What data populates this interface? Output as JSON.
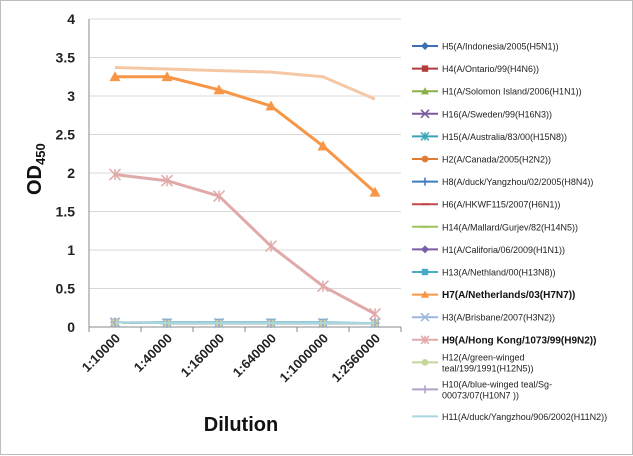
{
  "chart_data": {
    "type": "line",
    "title": "",
    "xlabel": "Dilution",
    "ylabel_main": "OD",
    "ylabel_sub": "450",
    "ylim": [
      0,
      4
    ],
    "yticks": [
      "0",
      "0.5",
      "1",
      "1.5",
      "2",
      "2.5",
      "3",
      "3.5",
      "4"
    ],
    "ytick_values": [
      0,
      0.5,
      1,
      1.5,
      2,
      2.5,
      3,
      3.5,
      4
    ],
    "categories": [
      "1:10000",
      "1:40000",
      "1:160000",
      "1:640000",
      "1:1000000",
      "1:2560000"
    ],
    "grid": "horizontal",
    "legend_position": "right",
    "series": [
      {
        "name": "H5(A/Indonesia/2005(H5N1))",
        "color": "#3d6fb5",
        "marker": "diamond",
        "values": [
          0.06,
          0.05,
          0.05,
          0.05,
          0.05,
          0.05
        ]
      },
      {
        "name": "H4(A/Ontario/99(H4N6))",
        "color": "#b23b3b",
        "marker": "square",
        "values": [
          0.06,
          0.05,
          0.05,
          0.05,
          0.05,
          0.05
        ]
      },
      {
        "name": "H1(A/Solomon Island/2006(H1N1))",
        "color": "#8ab04a",
        "marker": "triangle",
        "values": [
          0.06,
          0.05,
          0.05,
          0.05,
          0.05,
          0.05
        ]
      },
      {
        "name": "H16(A/Sweden/99(H16N3))",
        "color": "#7a5a9e",
        "marker": "x",
        "values": [
          0.06,
          0.05,
          0.05,
          0.05,
          0.05,
          0.05
        ]
      },
      {
        "name": "H15(A/Australia/83/00(H15N8))",
        "color": "#3aa3b8",
        "marker": "star",
        "values": [
          0.06,
          0.05,
          0.05,
          0.05,
          0.05,
          0.05
        ]
      },
      {
        "name": "H2(A/Canada/2005(H2N2))",
        "color": "#e07b30",
        "marker": "circle",
        "values": [
          0.06,
          0.05,
          0.05,
          0.05,
          0.05,
          0.05
        ]
      },
      {
        "name": "H8(A/duck/Yangzhou/02/2005(H8N4))",
        "color": "#3d7cc0",
        "marker": "plus",
        "values": [
          0.06,
          0.05,
          0.05,
          0.05,
          0.05,
          0.05
        ]
      },
      {
        "name": "H6(A/HKWF115/2007(H6N1))",
        "color": "#c24a4a",
        "marker": "dash",
        "values": [
          0.06,
          0.05,
          0.05,
          0.05,
          0.05,
          0.05
        ]
      },
      {
        "name": "H14(A/Mallard/Gurjev/82(H14N5))",
        "color": "#9bc45a",
        "marker": "dash",
        "values": [
          0.06,
          0.05,
          0.05,
          0.05,
          0.05,
          0.05
        ]
      },
      {
        "name": "H1(A/Califoria/06/2009(H1N1))",
        "color": "#7b5ca8",
        "marker": "diamond",
        "values": [
          0.06,
          0.05,
          0.05,
          0.05,
          0.05,
          0.05
        ]
      },
      {
        "name": "H13(A/Nethland/00(H13N8))",
        "color": "#4aa8c8",
        "marker": "square",
        "values": [
          0.06,
          0.06,
          0.06,
          0.06,
          0.06,
          0.05
        ]
      },
      {
        "name": "H7(A/Netherlands/03(H7N7))",
        "color": "#f79646",
        "marker": "triangle",
        "bold": true,
        "values": [
          3.25,
          3.25,
          3.08,
          2.87,
          2.35,
          1.75
        ]
      },
      {
        "name": "H3(A/Brisbane/2007(H3N2))",
        "color": "#9db8dc",
        "marker": "x",
        "values": [
          0.06,
          0.05,
          0.05,
          0.05,
          0.05,
          0.05
        ]
      },
      {
        "name": "H9(A/Hong Kong/1073/99(H9N2))",
        "color": "#e0aaaa",
        "marker": "star",
        "bold": true,
        "values": [
          1.98,
          1.9,
          1.7,
          1.05,
          0.53,
          0.17
        ]
      },
      {
        "name": "H12(A/green-winged teal/199/1991(H12N5))",
        "name_lines": [
          "H12(A/green-winged",
          "teal/199/1991(H12N5))"
        ],
        "color": "#c3d69b",
        "marker": "circle",
        "values": [
          0.06,
          0.05,
          0.05,
          0.05,
          0.05,
          0.05
        ]
      },
      {
        "name": "H10(A/blue-winged teal/Sg-00073/07(H10N7 ))",
        "name_lines": [
          "H10(A/blue-winged teal/Sg-",
          "00073/07(H10N7 ))"
        ],
        "color": "#b3a2c7",
        "marker": "plus",
        "values": [
          0.06,
          0.05,
          0.05,
          0.05,
          0.05,
          0.05
        ]
      },
      {
        "name": "H11(A/duck/Yangzhou/906/2002(H11N2))",
        "color": "#a8d8e0",
        "marker": "none",
        "values": [
          0.06,
          0.05,
          0.05,
          0.05,
          0.05,
          0.05
        ]
      },
      {
        "name": "",
        "color": "#f5c7a5",
        "marker": "none",
        "values": [
          3.37,
          3.35,
          3.33,
          3.31,
          3.25,
          2.96
        ]
      }
    ]
  }
}
